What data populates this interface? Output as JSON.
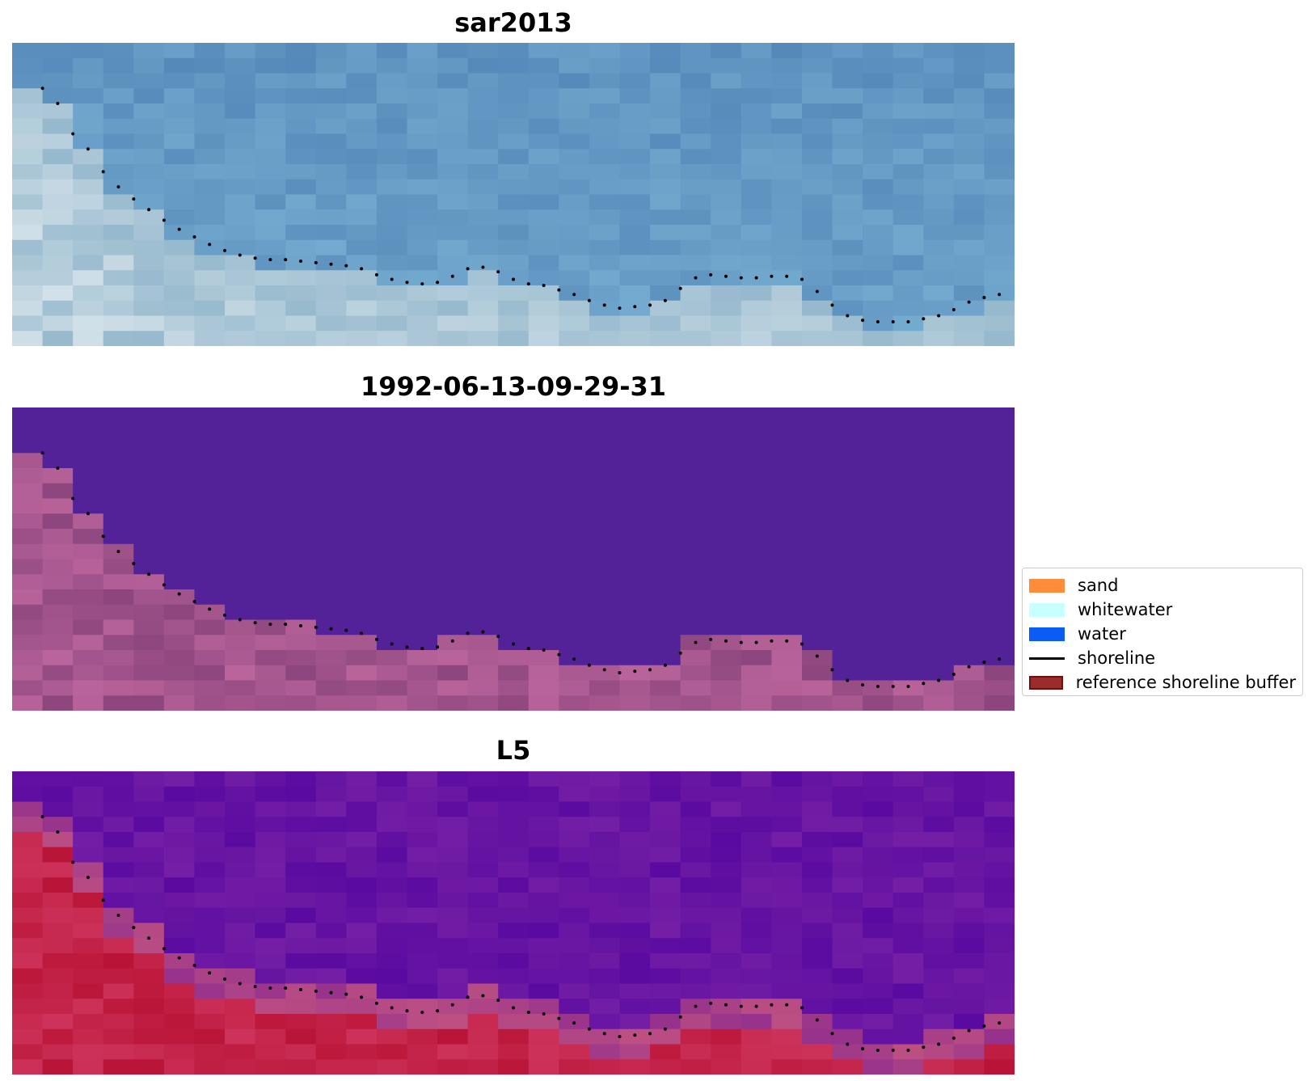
{
  "panels": [
    {
      "title": "sar2013",
      "kind": "rgb"
    },
    {
      "title": "1992-06-13-09-29-31",
      "kind": "class"
    },
    {
      "title": "L5",
      "kind": "index"
    }
  ],
  "legend": {
    "items": [
      {
        "label": "sand",
        "type": "patch",
        "color": "#ff8c3a"
      },
      {
        "label": "whitewater",
        "type": "patch",
        "color": "#c8ffff"
      },
      {
        "label": "water",
        "type": "patch",
        "color": "#0a5cf5"
      },
      {
        "label": "shoreline",
        "type": "line",
        "color": "#000000"
      },
      {
        "label": "reference shoreline buffer",
        "type": "patch",
        "color": "#9b2c2c",
        "edge": "#6b0f0f"
      }
    ]
  },
  "shoreline_points": [
    [
      1,
      3
    ],
    [
      1.5,
      4
    ],
    [
      2,
      6
    ],
    [
      2.5,
      7
    ],
    [
      3,
      8.5
    ],
    [
      3.5,
      9.5
    ],
    [
      4,
      10.3
    ],
    [
      4.5,
      11
    ],
    [
      5,
      11.7
    ],
    [
      5.5,
      12.3
    ],
    [
      6,
      12.8
    ],
    [
      6.5,
      13.3
    ],
    [
      7,
      13.7
    ],
    [
      7.5,
      14
    ],
    [
      8,
      14.2
    ],
    [
      8.5,
      14.3
    ],
    [
      9,
      14.3
    ],
    [
      9.5,
      14.4
    ],
    [
      10,
      14.5
    ],
    [
      10.5,
      14.6
    ],
    [
      11,
      14.7
    ],
    [
      11.5,
      14.9
    ],
    [
      12,
      15.3
    ],
    [
      12.5,
      15.6
    ],
    [
      13,
      15.8
    ],
    [
      13.5,
      15.9
    ],
    [
      14,
      15.8
    ],
    [
      14.5,
      15.4
    ],
    [
      15,
      14.9
    ],
    [
      15.5,
      14.8
    ],
    [
      16,
      15.1
    ],
    [
      16.5,
      15.6
    ],
    [
      17,
      15.9
    ],
    [
      17.5,
      16
    ],
    [
      18,
      16.3
    ],
    [
      18.5,
      16.6
    ],
    [
      19,
      17
    ],
    [
      19.5,
      17.3
    ],
    [
      20,
      17.5
    ],
    [
      20.5,
      17.4
    ],
    [
      21,
      17.3
    ],
    [
      21.5,
      17
    ],
    [
      22,
      16.2
    ],
    [
      22.5,
      15.5
    ],
    [
      23,
      15.3
    ],
    [
      23.5,
      15.4
    ],
    [
      24,
      15.5
    ],
    [
      24.5,
      15.5
    ],
    [
      25,
      15.4
    ],
    [
      25.5,
      15.4
    ],
    [
      26,
      15.6
    ],
    [
      26.5,
      16.4
    ],
    [
      27,
      17.3
    ],
    [
      27.5,
      18
    ],
    [
      28,
      18.3
    ],
    [
      28.5,
      18.4
    ],
    [
      29,
      18.4
    ],
    [
      29.5,
      18.4
    ],
    [
      30,
      18.2
    ],
    [
      30.5,
      18
    ],
    [
      31,
      17.6
    ],
    [
      31.5,
      17.1
    ],
    [
      32,
      16.8
    ],
    [
      32.5,
      16.6
    ]
  ],
  "grid": {
    "cols": 33,
    "rows": 20
  }
}
